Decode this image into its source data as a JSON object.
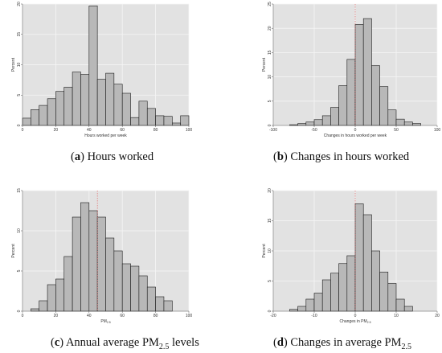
{
  "chart_data": [
    {
      "type": "bar",
      "letter": "a",
      "caption": "Hours worked",
      "xlabel": "Hours worked per week",
      "ylabel": "Percent",
      "xlim": [
        0,
        100
      ],
      "ylim": [
        0,
        20
      ],
      "xticks": [
        0,
        20,
        40,
        60,
        80,
        100
      ],
      "yticks": [
        0,
        5,
        10,
        15,
        20
      ],
      "bin_edges": [
        0,
        5,
        10,
        15,
        20,
        25,
        30,
        35,
        40,
        45,
        50,
        55,
        60,
        65,
        70,
        75,
        80,
        85,
        90,
        95,
        100
      ],
      "values": [
        1.2,
        2.6,
        3.3,
        4.4,
        5.6,
        6.3,
        8.8,
        8.4,
        19.7,
        7.6,
        8.6,
        6.8,
        5.3,
        1.3,
        4.0,
        2.8,
        1.6,
        1.5,
        0.4,
        1.6
      ],
      "refline": null
    },
    {
      "type": "bar",
      "letter": "b",
      "caption": "Changes in hours worked",
      "xlabel": "Changes in hours worked per week",
      "ylabel": "Percent",
      "xlim": [
        -100,
        100
      ],
      "ylim": [
        0,
        25
      ],
      "xticks": [
        -100,
        -50,
        0,
        50,
        100
      ],
      "yticks": [
        0,
        5,
        10,
        15,
        20,
        25
      ],
      "bin_edges": [
        -80,
        -70,
        -60,
        -50,
        -40,
        -30,
        -20,
        -10,
        0,
        10,
        20,
        30,
        40,
        50,
        60,
        70,
        80
      ],
      "values": [
        0.15,
        0.4,
        0.7,
        1.2,
        2.0,
        3.7,
        8.2,
        13.6,
        20.8,
        22.0,
        12.3,
        8.0,
        3.2,
        1.3,
        0.7,
        0.4,
        0.2
      ],
      "refline": 0
    },
    {
      "type": "bar",
      "letter": "c",
      "caption_pre": "Annual average PM",
      "caption_sub": "2.5",
      "caption_post": " levels",
      "xlabel": "PM",
      "xlabel_sub": "2.5",
      "ylabel": "Percent",
      "xlim": [
        0,
        100
      ],
      "ylim": [
        0,
        15
      ],
      "xticks": [
        0,
        20,
        40,
        60,
        80,
        100
      ],
      "yticks": [
        0,
        5,
        10,
        15
      ],
      "bin_edges": [
        5,
        10,
        15,
        20,
        25,
        30,
        35,
        40,
        45,
        50,
        55,
        60,
        65,
        70,
        75,
        80,
        85,
        90
      ],
      "values": [
        0.3,
        1.3,
        3.3,
        4.0,
        6.8,
        11.7,
        13.5,
        12.5,
        11.7,
        9.1,
        7.5,
        5.9,
        5.6,
        4.4,
        3.0,
        1.8,
        1.3,
        0.3
      ],
      "refline": 45
    },
    {
      "type": "bar",
      "letter": "d",
      "caption_pre": "Changes in average PM",
      "caption_sub": "2.5",
      "caption_post": "",
      "xlabel": "Changes in PM",
      "xlabel_sub": "2.5",
      "ylabel": "Percent",
      "xlim": [
        -20,
        20
      ],
      "ylim": [
        0,
        20
      ],
      "xticks": [
        -20,
        -10,
        0,
        10,
        20
      ],
      "yticks": [
        0,
        5,
        10,
        15,
        20
      ],
      "bin_edges": [
        -16,
        -14,
        -12,
        -10,
        -8,
        -6,
        -4,
        -2,
        0,
        2,
        4,
        6,
        8,
        10,
        12,
        14
      ],
      "values": [
        0.3,
        0.8,
        2.0,
        3.0,
        5.2,
        6.3,
        7.9,
        9.2,
        17.8,
        16.0,
        10.0,
        6.5,
        4.6,
        2.0,
        0.8,
        0.2
      ],
      "refline": 0
    }
  ],
  "colors": {
    "panel_bg": "#e2e2e2",
    "bar_fill": "#b8b8b8",
    "bar_stroke": "#1a1a1a",
    "grid": "#f6f6f6",
    "refline": "#e05a5a"
  }
}
